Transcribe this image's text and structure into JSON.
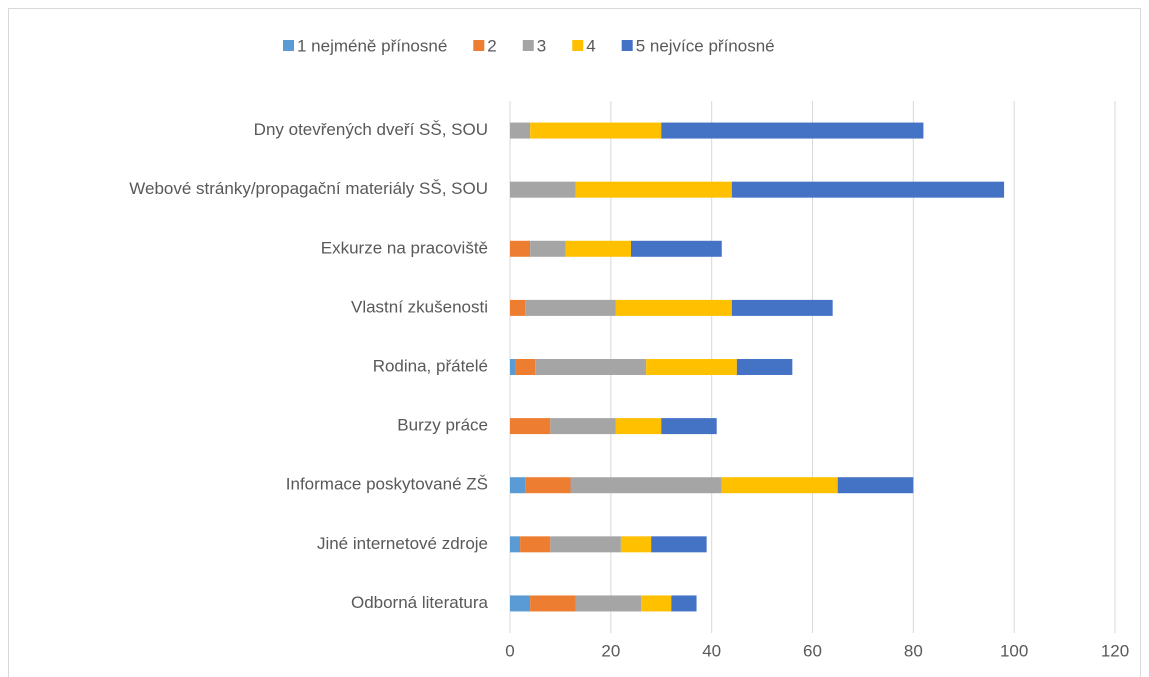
{
  "chart_data": {
    "type": "stacked_barh",
    "categories": [
      "Dny otevřených dveří SŠ, SOU",
      "Webové stránky/propagační  materiály SŠ, SOU",
      "Exkurze na pracoviště",
      "Vlastní zkušenosti",
      "Rodina, přátelé",
      "Burzy práce",
      "Informace poskytované ZŠ",
      "Jiné internetové zdroje",
      "Odborná literatura"
    ],
    "series": [
      {
        "name": "1 nejméně přínosné",
        "color": "#5b9bd5",
        "values": [
          0,
          0,
          0,
          0,
          1,
          0,
          3,
          2,
          4
        ]
      },
      {
        "name": "2",
        "color": "#ed7d31",
        "values": [
          0,
          0,
          4,
          3,
          4,
          8,
          9,
          6,
          9
        ]
      },
      {
        "name": "3",
        "color": "#a5a5a5",
        "values": [
          4,
          13,
          7,
          18,
          22,
          13,
          30,
          14,
          13
        ]
      },
      {
        "name": "4",
        "color": "#ffc000",
        "values": [
          26,
          31,
          13,
          23,
          18,
          9,
          23,
          6,
          6
        ]
      },
      {
        "name": "5 nejvíce přínosné",
        "color": "#4472c4",
        "values": [
          52,
          54,
          18,
          20,
          11,
          11,
          15,
          11,
          5
        ]
      }
    ],
    "xlim": [
      0,
      120
    ],
    "xticks": [
      0,
      20,
      40,
      60,
      80,
      100,
      120
    ],
    "grid": true,
    "legend": "top"
  }
}
